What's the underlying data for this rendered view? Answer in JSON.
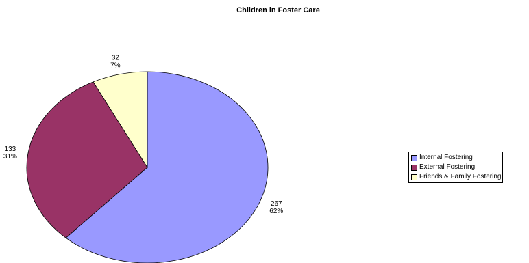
{
  "chart_data": {
    "type": "pie",
    "title": "Children in Foster Care",
    "categories": [
      "Internal Fostering",
      "External Fostering",
      "Friends & Family Fostering"
    ],
    "values": [
      267,
      133,
      32
    ],
    "percent_labels": [
      "62%",
      "31%",
      "7%"
    ],
    "colors": [
      "#9999ff",
      "#993366",
      "#ffffcc"
    ],
    "start_angle_deg": 0,
    "direction": "clockwise",
    "legend_position": "right"
  }
}
